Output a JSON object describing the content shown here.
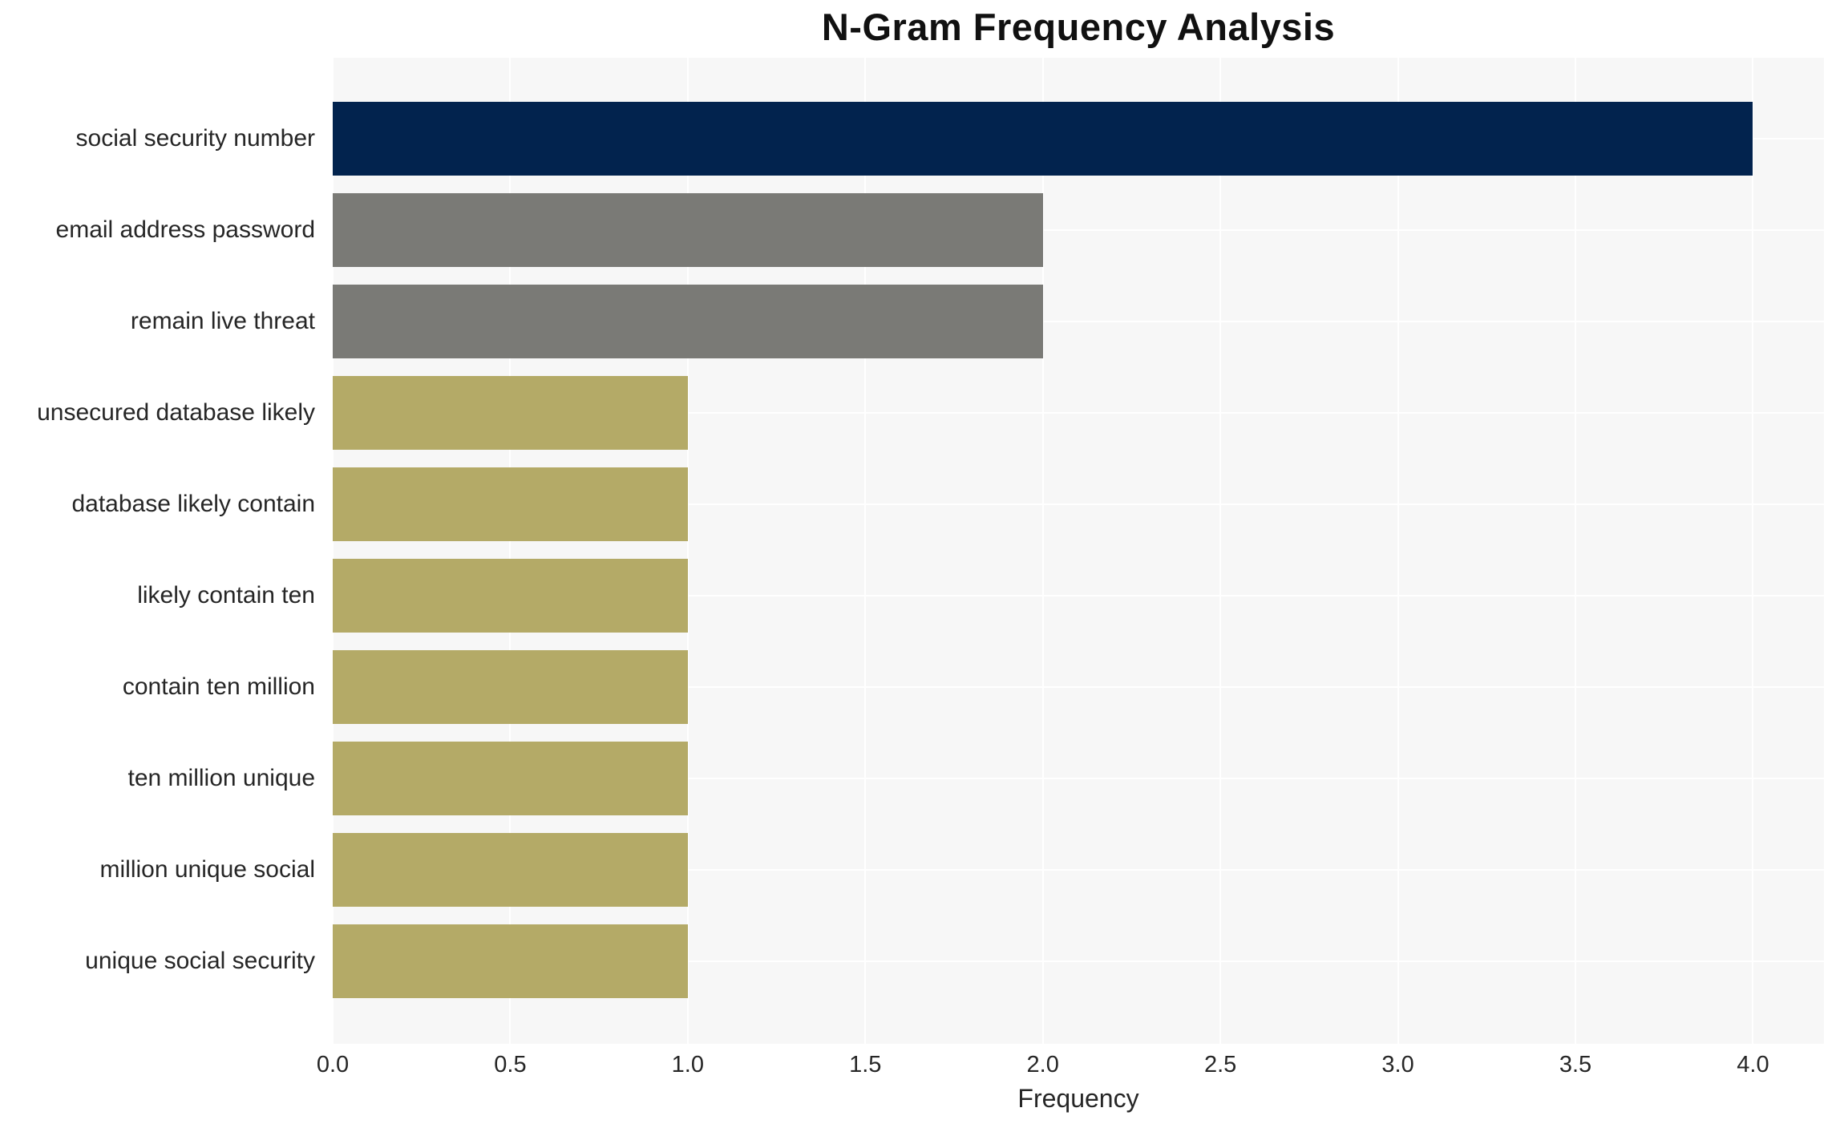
{
  "chart_data": {
    "type": "bar",
    "orientation": "horizontal",
    "title": "N-Gram Frequency Analysis",
    "xlabel": "Frequency",
    "ylabel": "",
    "categories": [
      "social security number",
      "email address password",
      "remain live threat",
      "unsecured database likely",
      "database likely contain",
      "likely contain ten",
      "contain ten million",
      "ten million unique",
      "million unique social",
      "unique social security"
    ],
    "values": [
      4,
      2,
      2,
      1,
      1,
      1,
      1,
      1,
      1,
      1
    ],
    "bar_colors": [
      "#02234e",
      "#7a7a76",
      "#7a7a76",
      "#b4aa67",
      "#b4aa67",
      "#b4aa67",
      "#b4aa67",
      "#b4aa67",
      "#b4aa67",
      "#b4aa67"
    ],
    "xlim": [
      0,
      4.2
    ],
    "xticks": [
      0,
      0.5,
      1,
      1.5,
      2,
      2.5,
      3,
      3.5,
      4
    ],
    "xtick_labels": [
      "0.0",
      "0.5",
      "1.0",
      "1.5",
      "2.0",
      "2.5",
      "3.0",
      "3.5",
      "4.0"
    ],
    "grid": true,
    "legend": false
  },
  "styles": {
    "plot_background": "#f7f7f7",
    "grid_color": "#ffffff",
    "text_color": "#262626",
    "title_color": "#111111",
    "page_background": "#ffffff"
  }
}
